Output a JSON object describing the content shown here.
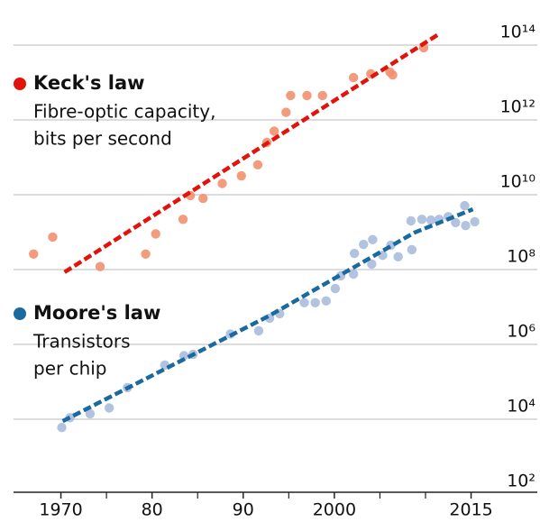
{
  "chart_data": {
    "type": "scatter",
    "yscale": "log",
    "grid": true,
    "xlim": [
      1965,
      2019
    ],
    "ylim": [
      100,
      100000000000000.0
    ],
    "xticks": [
      {
        "value": 1970,
        "label": "1970"
      },
      {
        "value": 1980,
        "label": "80"
      },
      {
        "value": 1990,
        "label": "90"
      },
      2000,
      2015
    ],
    "xminor": [
      1975,
      1985,
      1995,
      2005,
      2010
    ],
    "yticks": [
      {
        "value": 100000000000000.0,
        "label": "10¹⁴"
      },
      {
        "value": 1000000000000.0,
        "label": "10¹²"
      },
      {
        "value": 10000000000.0,
        "label": "10¹⁰"
      },
      {
        "value": 100000000.0,
        "label": "10⁸"
      },
      {
        "value": 1000000.0,
        "label": "10⁶"
      },
      {
        "value": 10000.0,
        "label": "10⁴"
      },
      {
        "value": 100.0,
        "label": "10²"
      }
    ],
    "series": [
      {
        "name": "Keck's law",
        "description": [
          "Fibre-optic capacity,",
          "bits per second"
        ],
        "color": "#e3120b",
        "point_color": "#f2906f",
        "x": [
          1967,
          1969.1,
          1974.3,
          1979.3,
          1980.4,
          1983.4,
          1984.2,
          1985.6,
          1987.7,
          1989.8,
          1991.6,
          1992.6,
          1993.4,
          1994.7,
          1995.2,
          1997,
          1998.7,
          2002.1,
          2004,
          2006.1,
          2006.4,
          2009.8
        ],
        "values": [
          260000000.0,
          740000000.0,
          120000000.0,
          260000000.0,
          900000000.0,
          2200000000.0,
          9500000000.0,
          8000000000.0,
          20000000000.0,
          32000000000.0,
          63000000000.0,
          250000000000.0,
          500000000000.0,
          1600000000000.0,
          4500000000000.0,
          4500000000000.0,
          4500000000000.0,
          13500000000000.0,
          17000000000000.0,
          19000000000000.0,
          16000000000000.0,
          85000000000000.0
        ],
        "trend": {
          "x": [
            1970.4,
            2011.5
          ],
          "values": [
            85000000.0,
            200000000000000.0
          ]
        }
      },
      {
        "name": "Moore's law",
        "description": [
          "Transistors",
          "per chip"
        ],
        "color": "#1a6aa0",
        "point_color": "#a9bddc",
        "x": [
          1970.1,
          1971,
          1973.2,
          1975.3,
          1977.3,
          1981.4,
          1983.5,
          1984.5,
          1988.6,
          1991.7,
          1992.9,
          1994,
          1996.7,
          1997.9,
          1999.1,
          2000.1,
          2000.7,
          2002.1,
          2002.2,
          2003.2,
          2004.2,
          2004.1,
          2005.3,
          2006.2,
          2007,
          2008.5,
          2008.4,
          2009.6,
          2010.6,
          2011.5,
          2012.5,
          2013.3,
          2014.3,
          2015.4,
          2014.4
        ],
        "values": [
          6000.0,
          11000.0,
          14000.0,
          20000.0,
          70000.0,
          280000.0,
          500000.0,
          540000.0,
          1900000.0,
          2300000.0,
          5000000.0,
          6600000.0,
          13000000.0,
          13000000.0,
          14500000.0,
          31000000.0,
          68000000.0,
          76000000.0,
          270000000.0,
          470000000.0,
          630000000.0,
          140000000.0,
          240000000.0,
          450000000.0,
          220000000.0,
          340000000.0,
          2000000000.0,
          2200000000.0,
          2100000000.0,
          2200000000.0,
          2600000000.0,
          1800000000.0,
          5100000000.0,
          1900000000.0,
          1500000000.0
        ],
        "trend": {
          "x": [
            1970.2,
            1992.9,
            2008.8,
            2015.2
          ],
          "values": [
            8900.0,
            5900000.0,
            980000000.0,
            4100000000.0
          ]
        }
      }
    ]
  }
}
